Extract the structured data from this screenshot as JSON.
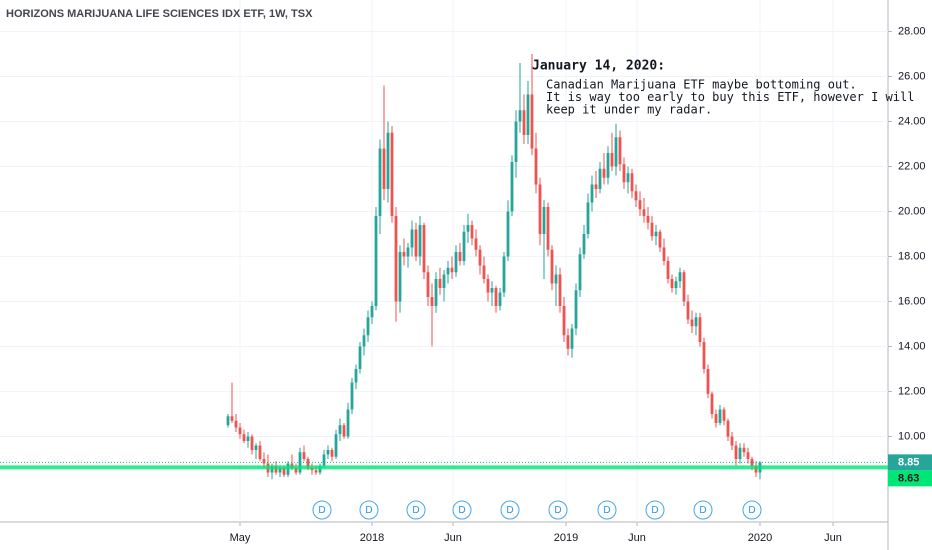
{
  "chart_data": {
    "type": "candlestick",
    "title": "HORIZONS MARIJUANA LIFE SCIENCES IDX ETF, 1W, TSX",
    "up_color": "#26a69a",
    "down_color": "#ef5350",
    "grid": true,
    "xlim": [
      -57,
      165
    ],
    "xticks": [
      {
        "value": 3,
        "label": "May"
      },
      {
        "value": 36,
        "label": "2018"
      },
      {
        "value": 56.25,
        "label": "Jun"
      },
      {
        "value": 84.5,
        "label": "2019"
      },
      {
        "value": 102.25,
        "label": "Jun"
      },
      {
        "value": 133,
        "label": "2020"
      },
      {
        "value": 151.25,
        "label": "Jun"
      }
    ],
    "ylim": [
      6.2,
      29.4
    ],
    "yticks": [
      {
        "value": 10,
        "label": "10.00"
      },
      {
        "value": 12,
        "label": "12.00"
      },
      {
        "value": 14,
        "label": "14.00"
      },
      {
        "value": 16,
        "label": "16.00"
      },
      {
        "value": 18,
        "label": "18.00"
      },
      {
        "value": 20,
        "label": "20.00"
      },
      {
        "value": 22,
        "label": "22.00"
      },
      {
        "value": 24,
        "label": "24.00"
      },
      {
        "value": 26,
        "label": "26.00"
      },
      {
        "value": 28,
        "label": "28.00"
      }
    ],
    "candles": [
      [
        10.5,
        11.0,
        10.4,
        10.9
      ],
      [
        10.9,
        12.4,
        10.6,
        10.7
      ],
      [
        10.7,
        11.0,
        10.2,
        10.4
      ],
      [
        10.4,
        10.6,
        9.9,
        10.1
      ],
      [
        10.1,
        10.3,
        9.7,
        9.8
      ],
      [
        9.8,
        10.2,
        9.5,
        10.0
      ],
      [
        10.0,
        10.1,
        9.2,
        9.4
      ],
      [
        9.4,
        9.7,
        9.0,
        9.6
      ],
      [
        9.6,
        9.8,
        8.9,
        9.0
      ],
      [
        9.0,
        9.3,
        8.6,
        8.8
      ],
      [
        8.8,
        9.2,
        8.2,
        8.4
      ],
      [
        8.4,
        8.8,
        8.1,
        8.7
      ],
      [
        8.7,
        8.9,
        8.3,
        8.4
      ],
      [
        8.4,
        8.7,
        8.2,
        8.6
      ],
      [
        8.6,
        8.7,
        8.2,
        8.3
      ],
      [
        8.3,
        8.9,
        8.2,
        8.8
      ],
      [
        8.8,
        9.2,
        8.5,
        8.6
      ],
      [
        8.6,
        8.8,
        8.3,
        8.4
      ],
      [
        8.4,
        9.5,
        8.3,
        9.3
      ],
      [
        9.3,
        9.6,
        8.9,
        9.0
      ],
      [
        9.0,
        9.1,
        8.5,
        8.6
      ],
      [
        8.6,
        8.8,
        8.3,
        8.5
      ],
      [
        8.5,
        8.7,
        8.3,
        8.4
      ],
      [
        8.4,
        8.8,
        8.3,
        8.7
      ],
      [
        8.7,
        9.4,
        8.6,
        9.2
      ],
      [
        9.2,
        9.6,
        9.0,
        9.4
      ],
      [
        9.4,
        9.5,
        8.9,
        9.1
      ],
      [
        9.1,
        10.3,
        9.0,
        10.1
      ],
      [
        10.1,
        10.8,
        9.8,
        10.5
      ],
      [
        10.5,
        10.6,
        9.9,
        10.0
      ],
      [
        10.0,
        11.5,
        9.9,
        11.2
      ],
      [
        11.2,
        12.6,
        11.0,
        12.4
      ],
      [
        12.4,
        13.2,
        12.1,
        13.0
      ],
      [
        13.0,
        14.2,
        12.8,
        14.0
      ],
      [
        14.0,
        14.8,
        13.6,
        14.5
      ],
      [
        14.5,
        15.6,
        14.2,
        15.3
      ],
      [
        15.3,
        16.0,
        15.0,
        15.8
      ],
      [
        15.8,
        20.2,
        15.6,
        19.8
      ],
      [
        19.8,
        23.2,
        19.0,
        22.8
      ],
      [
        22.8,
        25.6,
        20.5,
        21.0
      ],
      [
        21.0,
        24.0,
        20.4,
        23.5
      ],
      [
        23.5,
        23.8,
        19.5,
        19.8
      ],
      [
        19.8,
        20.2,
        15.1,
        16.0
      ],
      [
        16.0,
        18.5,
        15.5,
        18.2
      ],
      [
        18.2,
        18.8,
        17.6,
        18.0
      ],
      [
        18.0,
        18.6,
        17.5,
        18.4
      ],
      [
        18.4,
        19.6,
        18.0,
        19.2
      ],
      [
        19.2,
        19.5,
        17.8,
        18.0
      ],
      [
        18.0,
        19.8,
        17.6,
        19.4
      ],
      [
        19.4,
        19.5,
        17.0,
        17.3
      ],
      [
        17.3,
        17.6,
        15.8,
        16.2
      ],
      [
        16.2,
        16.8,
        14.0,
        15.8
      ],
      [
        15.8,
        17.3,
        15.5,
        17.0
      ],
      [
        17.0,
        17.5,
        16.3,
        16.6
      ],
      [
        16.6,
        17.4,
        16.0,
        17.2
      ],
      [
        17.2,
        17.8,
        16.8,
        17.5
      ],
      [
        17.5,
        18.0,
        17.0,
        17.3
      ],
      [
        17.3,
        18.5,
        17.1,
        18.2
      ],
      [
        18.2,
        18.6,
        17.6,
        17.8
      ],
      [
        17.8,
        19.4,
        17.6,
        19.1
      ],
      [
        19.1,
        19.9,
        18.6,
        19.4
      ],
      [
        19.4,
        19.6,
        18.5,
        18.8
      ],
      [
        18.8,
        19.2,
        18.0,
        18.3
      ],
      [
        18.3,
        18.5,
        17.2,
        17.6
      ],
      [
        17.6,
        18.0,
        16.8,
        17.0
      ],
      [
        17.0,
        17.2,
        16.0,
        16.4
      ],
      [
        16.4,
        16.9,
        15.8,
        16.6
      ],
      [
        16.6,
        16.7,
        15.5,
        15.8
      ],
      [
        15.8,
        16.6,
        15.6,
        16.4
      ],
      [
        16.4,
        18.2,
        16.2,
        18.0
      ],
      [
        18.0,
        20.5,
        17.8,
        20.0
      ],
      [
        20.0,
        22.5,
        19.8,
        22.2
      ],
      [
        22.2,
        24.5,
        21.5,
        24.0
      ],
      [
        24.0,
        26.6,
        23.5,
        24.5
      ],
      [
        24.5,
        25.2,
        23.0,
        23.4
      ],
      [
        23.4,
        25.8,
        23.0,
        25.2
      ],
      [
        25.2,
        27.0,
        22.5,
        22.8
      ],
      [
        22.8,
        23.5,
        20.8,
        21.2
      ],
      [
        21.2,
        21.5,
        18.5,
        19.0
      ],
      [
        19.0,
        20.5,
        17.0,
        20.2
      ],
      [
        20.2,
        20.4,
        18.0,
        18.3
      ],
      [
        18.3,
        18.5,
        16.5,
        16.8
      ],
      [
        16.8,
        17.6,
        15.8,
        17.2
      ],
      [
        17.2,
        17.5,
        15.5,
        15.8
      ],
      [
        15.8,
        16.2,
        14.2,
        14.5
      ],
      [
        14.5,
        14.8,
        13.6,
        13.9
      ],
      [
        13.9,
        15.0,
        13.5,
        14.8
      ],
      [
        14.8,
        16.8,
        14.5,
        16.5
      ],
      [
        16.5,
        18.4,
        16.2,
        18.1
      ],
      [
        18.1,
        19.4,
        17.9,
        19.0
      ],
      [
        19.0,
        20.8,
        18.8,
        20.4
      ],
      [
        20.4,
        21.6,
        20.0,
        21.2
      ],
      [
        21.2,
        21.8,
        20.6,
        21.0
      ],
      [
        21.0,
        22.2,
        20.8,
        21.9
      ],
      [
        21.9,
        22.6,
        21.2,
        21.5
      ],
      [
        21.5,
        22.9,
        21.2,
        22.6
      ],
      [
        22.6,
        23.5,
        21.8,
        22.0
      ],
      [
        22.0,
        23.9,
        21.6,
        23.3
      ],
      [
        23.3,
        23.6,
        21.8,
        22.1
      ],
      [
        22.1,
        22.4,
        21.0,
        21.3
      ],
      [
        21.3,
        22.0,
        20.8,
        21.7
      ],
      [
        21.7,
        21.9,
        20.6,
        20.9
      ],
      [
        20.9,
        21.2,
        20.2,
        20.5
      ],
      [
        20.5,
        20.9,
        19.8,
        20.1
      ],
      [
        20.1,
        20.6,
        19.5,
        19.8
      ],
      [
        19.8,
        20.2,
        19.2,
        19.5
      ],
      [
        19.5,
        19.8,
        18.7,
        18.9
      ],
      [
        18.9,
        19.4,
        18.5,
        19.1
      ],
      [
        19.1,
        19.2,
        18.2,
        18.4
      ],
      [
        18.4,
        18.8,
        17.6,
        17.8
      ],
      [
        17.8,
        18.0,
        16.8,
        17.0
      ],
      [
        17.0,
        17.2,
        16.4,
        16.6
      ],
      [
        16.6,
        17.1,
        16.3,
        16.9
      ],
      [
        16.9,
        17.5,
        16.6,
        17.3
      ],
      [
        17.3,
        17.4,
        15.8,
        16.0
      ],
      [
        16.0,
        16.3,
        15.0,
        15.2
      ],
      [
        15.2,
        15.6,
        14.6,
        14.9
      ],
      [
        14.9,
        15.5,
        14.5,
        15.3
      ],
      [
        15.3,
        15.5,
        14.0,
        14.2
      ],
      [
        14.2,
        14.4,
        12.8,
        13.0
      ],
      [
        13.0,
        13.2,
        11.7,
        11.9
      ],
      [
        11.9,
        12.0,
        10.8,
        11.0
      ],
      [
        11.0,
        11.2,
        10.4,
        10.6
      ],
      [
        10.6,
        11.4,
        10.5,
        11.2
      ],
      [
        11.2,
        11.3,
        10.5,
        10.7
      ],
      [
        10.7,
        10.8,
        9.8,
        10.0
      ],
      [
        10.0,
        10.2,
        9.4,
        9.6
      ],
      [
        9.6,
        9.8,
        8.7,
        9.0
      ],
      [
        9.0,
        9.7,
        8.8,
        9.5
      ],
      [
        9.5,
        9.7,
        9.1,
        9.3
      ],
      [
        9.3,
        9.5,
        8.8,
        9.0
      ],
      [
        9.0,
        9.1,
        8.5,
        8.7
      ],
      [
        8.7,
        8.9,
        8.2,
        8.4
      ],
      [
        8.4,
        8.9,
        8.1,
        8.85
      ]
    ],
    "levels": [
      {
        "value": 8.85,
        "color": "#26a69a",
        "style": "dotted"
      },
      {
        "value": 8.63,
        "color": "#00e676",
        "style": "solid"
      }
    ],
    "dividends": [
      {
        "x": 23.5,
        "label": "D"
      },
      {
        "x": 35.25,
        "label": "D"
      },
      {
        "x": 47,
        "label": "D"
      },
      {
        "x": 58.5,
        "label": "D"
      },
      {
        "x": 70.5,
        "label": "D"
      },
      {
        "x": 82.5,
        "label": "D"
      },
      {
        "x": 94.75,
        "label": "D"
      },
      {
        "x": 106.75,
        "label": "D"
      },
      {
        "x": 118.75,
        "label": "D"
      },
      {
        "x": 131,
        "label": "D"
      }
    ],
    "annotation": {
      "title": "January 14, 2020:",
      "lines": [
        "Canadian Marijuana ETF maybe bottoming out.",
        "It is way too early to buy this ETF, however I will",
        "keep it under my radar."
      ]
    }
  }
}
